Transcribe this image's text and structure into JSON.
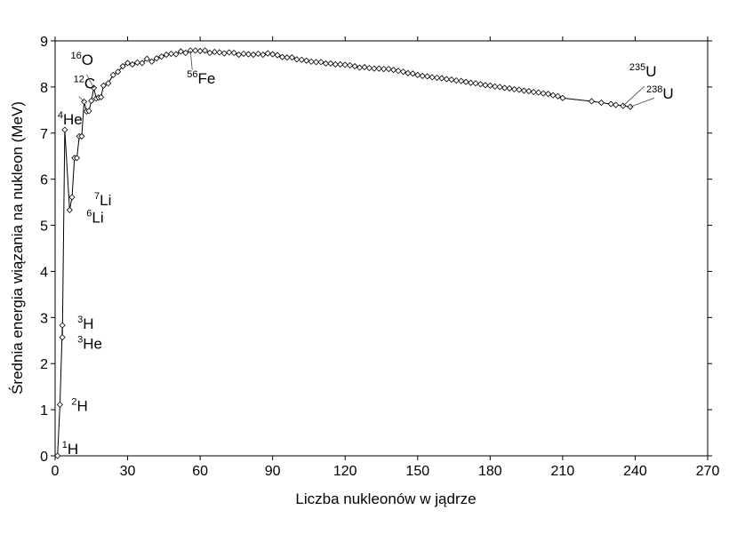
{
  "chart_data": {
    "type": "scatter",
    "xlabel": "Liczba nukleonów w jądrze",
    "ylabel": "Średnia energia wiązania na nukleon (MeV)",
    "xlim": [
      0,
      270
    ],
    "ylim": [
      0,
      9
    ],
    "xticks": [
      0,
      30,
      60,
      90,
      120,
      150,
      180,
      210,
      240,
      270
    ],
    "yticks": [
      0,
      1,
      2,
      3,
      4,
      5,
      6,
      7,
      8,
      9
    ],
    "grid": false,
    "series": [
      {
        "values_xy": [
          [
            1,
            0
          ],
          [
            2,
            1.11
          ],
          [
            3,
            2.83
          ],
          [
            3,
            2.57
          ],
          [
            4,
            7.07
          ],
          [
            6,
            5.33
          ],
          [
            7,
            5.61
          ],
          [
            8,
            6.46
          ],
          [
            9,
            6.46
          ],
          [
            10,
            6.93
          ],
          [
            11,
            6.93
          ],
          [
            12,
            7.68
          ],
          [
            13,
            7.47
          ],
          [
            14,
            7.48
          ],
          [
            15,
            7.7
          ],
          [
            16,
            7.98
          ],
          [
            17,
            7.75
          ],
          [
            18,
            7.77
          ],
          [
            19,
            7.78
          ],
          [
            20,
            8.03
          ],
          [
            22,
            8.08
          ],
          [
            24,
            8.26
          ],
          [
            26,
            8.33
          ],
          [
            28,
            8.45
          ],
          [
            30,
            8.52
          ],
          [
            32,
            8.49
          ],
          [
            34,
            8.53
          ],
          [
            36,
            8.52
          ],
          [
            38,
            8.61
          ],
          [
            40,
            8.55
          ],
          [
            42,
            8.62
          ],
          [
            44,
            8.66
          ],
          [
            46,
            8.7
          ],
          [
            48,
            8.72
          ],
          [
            50,
            8.71
          ],
          [
            52,
            8.77
          ],
          [
            54,
            8.74
          ],
          [
            56,
            8.79
          ],
          [
            58,
            8.79
          ],
          [
            60,
            8.78
          ],
          [
            62,
            8.79
          ],
          [
            64,
            8.74
          ],
          [
            66,
            8.76
          ],
          [
            68,
            8.75
          ],
          [
            70,
            8.73
          ],
          [
            72,
            8.75
          ],
          [
            74,
            8.74
          ],
          [
            76,
            8.7
          ],
          [
            78,
            8.72
          ],
          [
            80,
            8.71
          ],
          [
            82,
            8.7
          ],
          [
            84,
            8.72
          ],
          [
            86,
            8.7
          ],
          [
            88,
            8.73
          ],
          [
            90,
            8.71
          ],
          [
            92,
            8.69
          ],
          [
            94,
            8.65
          ],
          [
            96,
            8.64
          ],
          [
            98,
            8.64
          ],
          [
            100,
            8.6
          ],
          [
            102,
            8.59
          ],
          [
            104,
            8.57
          ],
          [
            106,
            8.55
          ],
          [
            108,
            8.54
          ],
          [
            110,
            8.54
          ],
          [
            112,
            8.51
          ],
          [
            114,
            8.51
          ],
          [
            116,
            8.49
          ],
          [
            118,
            8.49
          ],
          [
            120,
            8.48
          ],
          [
            122,
            8.47
          ],
          [
            124,
            8.45
          ],
          [
            126,
            8.42
          ],
          [
            128,
            8.43
          ],
          [
            130,
            8.41
          ],
          [
            132,
            8.4
          ],
          [
            134,
            8.4
          ],
          [
            136,
            8.39
          ],
          [
            138,
            8.39
          ],
          [
            140,
            8.37
          ],
          [
            142,
            8.35
          ],
          [
            144,
            8.33
          ],
          [
            146,
            8.3
          ],
          [
            148,
            8.29
          ],
          [
            150,
            8.26
          ],
          [
            152,
            8.24
          ],
          [
            154,
            8.23
          ],
          [
            156,
            8.21
          ],
          [
            158,
            8.2
          ],
          [
            160,
            8.19
          ],
          [
            162,
            8.17
          ],
          [
            164,
            8.16
          ],
          [
            166,
            8.14
          ],
          [
            168,
            8.13
          ],
          [
            170,
            8.11
          ],
          [
            172,
            8.09
          ],
          [
            174,
            8.08
          ],
          [
            176,
            8.06
          ],
          [
            178,
            8.04
          ],
          [
            180,
            8.03
          ],
          [
            182,
            8.01
          ],
          [
            184,
            8.0
          ],
          [
            186,
            7.98
          ],
          [
            188,
            7.97
          ],
          [
            190,
            7.95
          ],
          [
            192,
            7.94
          ],
          [
            194,
            7.92
          ],
          [
            196,
            7.91
          ],
          [
            198,
            7.89
          ],
          [
            200,
            7.88
          ],
          [
            202,
            7.86
          ],
          [
            204,
            7.85
          ],
          [
            206,
            7.82
          ],
          [
            208,
            7.8
          ],
          [
            210,
            7.76
          ],
          [
            222,
            7.69
          ],
          [
            226,
            7.66
          ],
          [
            230,
            7.63
          ],
          [
            232,
            7.61
          ],
          [
            235,
            7.59
          ],
          [
            238,
            7.57
          ]
        ],
        "marker": "diamond"
      }
    ],
    "annotations": [
      {
        "x": 1,
        "y": 0,
        "sup": "1",
        "text": "H"
      },
      {
        "x": 2,
        "y": 1.11,
        "sup": "2",
        "text": "H"
      },
      {
        "x": 3,
        "y": 2.83,
        "sup": "3",
        "text": "H"
      },
      {
        "x": 3,
        "y": 2.57,
        "sup": "3",
        "text": "He"
      },
      {
        "x": 4,
        "y": 7.07,
        "sup": "4",
        "text": "He"
      },
      {
        "x": 6,
        "y": 5.33,
        "sup": "6",
        "text": "Li"
      },
      {
        "x": 7,
        "y": 5.61,
        "sup": "7",
        "text": "Li"
      },
      {
        "x": 12,
        "y": 7.68,
        "sup": "12",
        "text": "C"
      },
      {
        "x": 16,
        "y": 7.98,
        "sup": "16",
        "text": "O"
      },
      {
        "x": 56,
        "y": 8.79,
        "sup": "56",
        "text": "Fe"
      },
      {
        "x": 235,
        "y": 7.59,
        "sup": "235",
        "text": "U"
      },
      {
        "x": 238,
        "y": 7.57,
        "sup": "238",
        "text": "U"
      }
    ]
  }
}
